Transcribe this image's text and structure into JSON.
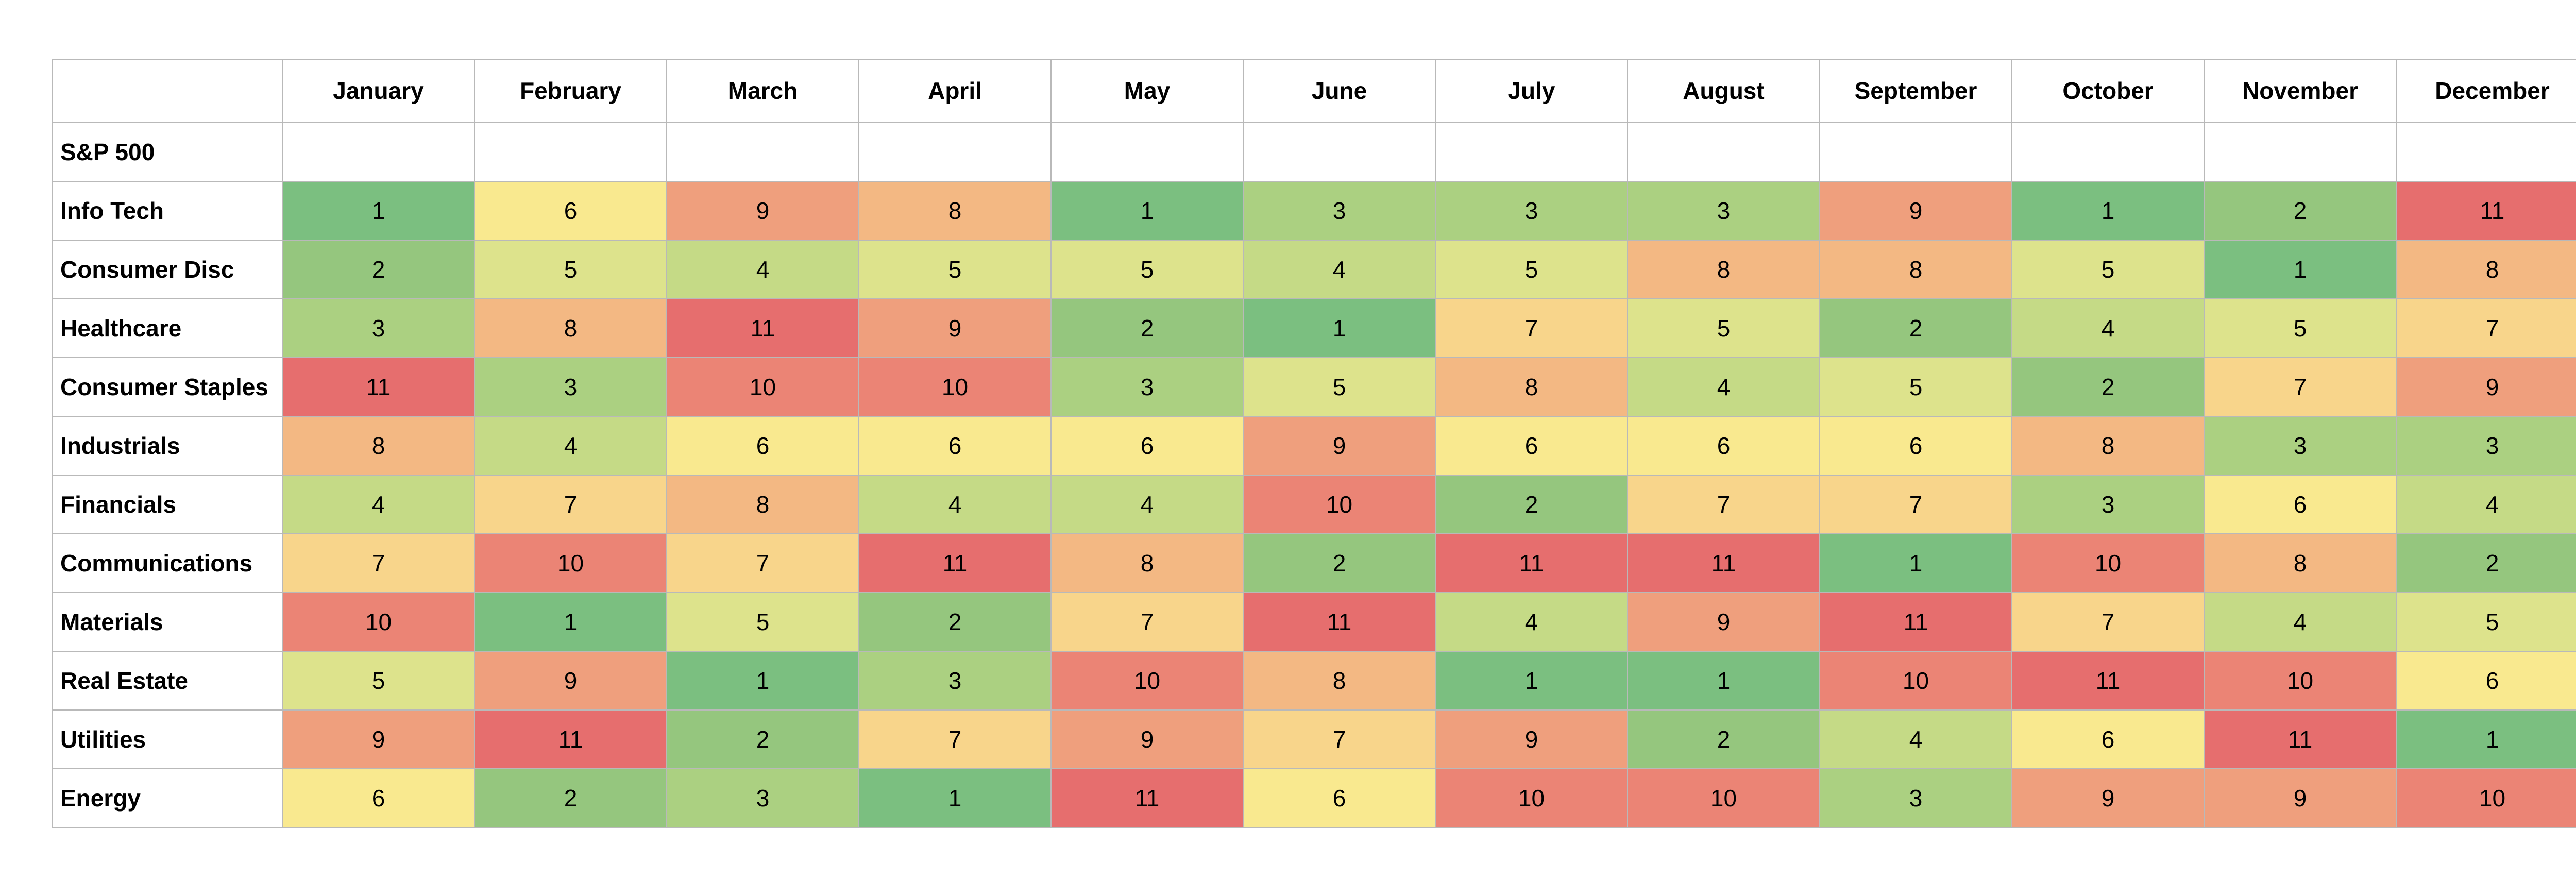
{
  "chart_data": {
    "type": "heatmap",
    "index_label": "S&P 500",
    "columns": [
      "January",
      "February",
      "March",
      "April",
      "May",
      "June",
      "July",
      "August",
      "September",
      "October",
      "November",
      "December"
    ],
    "rows": [
      {
        "name": "Info Tech",
        "values": [
          1,
          6,
          9,
          8,
          1,
          3,
          3,
          3,
          9,
          1,
          2,
          11
        ]
      },
      {
        "name": "Consumer Disc",
        "values": [
          2,
          5,
          4,
          5,
          5,
          4,
          5,
          8,
          8,
          5,
          1,
          8
        ]
      },
      {
        "name": "Healthcare",
        "values": [
          3,
          8,
          11,
          9,
          2,
          1,
          7,
          5,
          2,
          4,
          5,
          7
        ]
      },
      {
        "name": "Consumer Staples",
        "values": [
          11,
          3,
          10,
          10,
          3,
          5,
          8,
          4,
          5,
          2,
          7,
          9
        ]
      },
      {
        "name": "Industrials",
        "values": [
          8,
          4,
          6,
          6,
          6,
          9,
          6,
          6,
          6,
          8,
          3,
          3
        ]
      },
      {
        "name": "Financials",
        "values": [
          4,
          7,
          8,
          4,
          4,
          10,
          2,
          7,
          7,
          3,
          6,
          4
        ]
      },
      {
        "name": "Communications",
        "values": [
          7,
          10,
          7,
          11,
          8,
          2,
          11,
          11,
          1,
          10,
          8,
          2
        ]
      },
      {
        "name": "Materials",
        "values": [
          10,
          1,
          5,
          2,
          7,
          11,
          4,
          9,
          11,
          7,
          4,
          5
        ]
      },
      {
        "name": "Real Estate",
        "values": [
          5,
          9,
          1,
          3,
          10,
          8,
          1,
          1,
          10,
          11,
          10,
          6
        ]
      },
      {
        "name": "Utilities",
        "values": [
          9,
          11,
          2,
          7,
          9,
          7,
          9,
          2,
          4,
          6,
          11,
          1
        ]
      },
      {
        "name": "Energy",
        "values": [
          6,
          2,
          3,
          1,
          11,
          6,
          10,
          10,
          3,
          9,
          9,
          10
        ]
      }
    ],
    "color_scale": {
      "1": "#7bbf80",
      "2": "#95c67e",
      "3": "#abd081",
      "4": "#c5da86",
      "5": "#dde38c",
      "6": "#f9e98f",
      "7": "#f8d58b",
      "8": "#f3b883",
      "9": "#ef9f7d",
      "10": "#eb8475",
      "11": "#e66e6e"
    },
    "border_color": "#b9b9b9"
  }
}
